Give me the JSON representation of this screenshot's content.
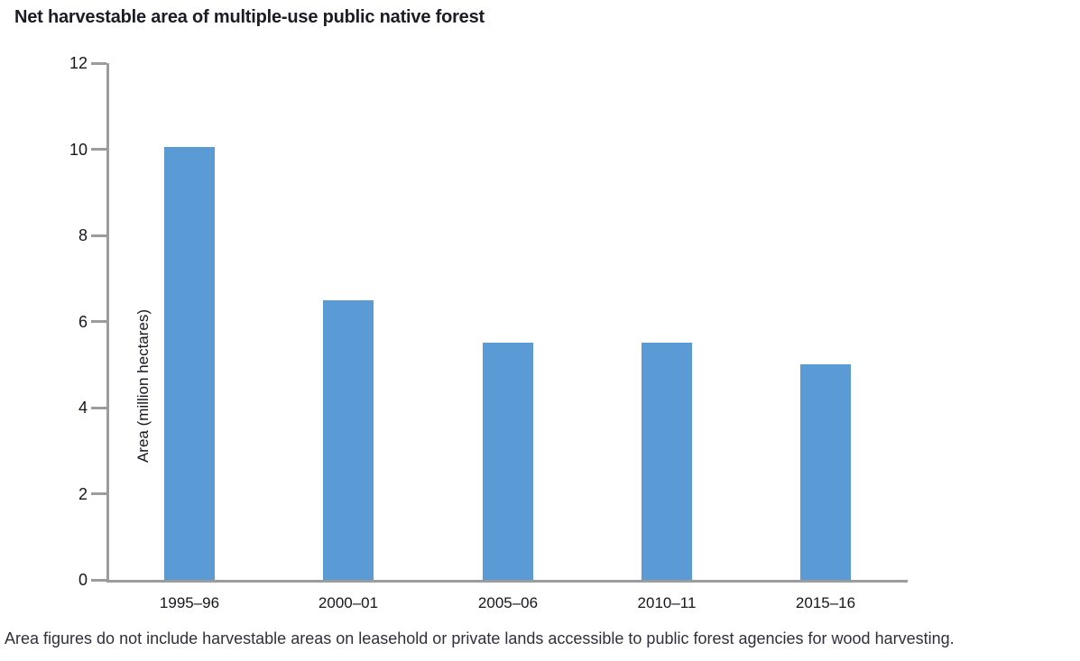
{
  "title": "Net harvestable area of multiple-use public native forest",
  "footnote": "Area figures do not include harvestable areas on leasehold or private lands accessible to public forest agencies for wood harvesting.",
  "chart_data": {
    "type": "bar",
    "title": "Net harvestable area of multiple-use public native forest",
    "categories": [
      "1995–96",
      "2000–01",
      "2005–06",
      "2010–11",
      "2015–16"
    ],
    "values": [
      10.05,
      6.5,
      5.5,
      5.5,
      5.0
    ],
    "xlabel": "",
    "ylabel": "Area (million hectares)",
    "ylim": [
      0,
      12
    ],
    "y_ticks": [
      0,
      2,
      4,
      6,
      8,
      10,
      12
    ],
    "grid": false,
    "legend": "none",
    "bar_color": "#5b9bd5",
    "axis_color": "#9c9c9c",
    "annotation": "Area figures do not include harvestable areas on leasehold or private lands accessible to public forest agencies for wood harvesting."
  }
}
